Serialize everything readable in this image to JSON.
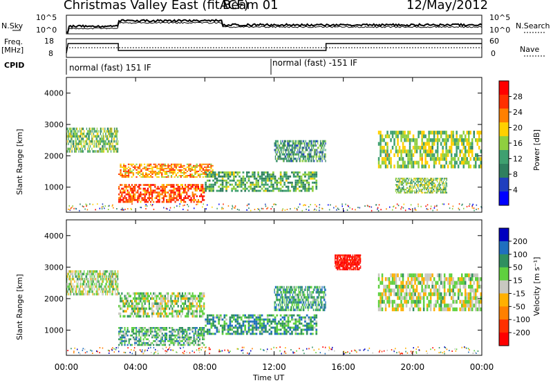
{
  "header": {
    "title": "Christmas Valley East (fitACF)",
    "beam": "Beam 01",
    "date": "12/May/2012"
  },
  "top_panels": {
    "nsky_label": "N.Sky",
    "nsky_ticks": [
      "10^5",
      "10^0"
    ],
    "nsearch_label": "N.Search",
    "nsearch_ticks": [
      "10^5",
      "10^0"
    ],
    "freq_label": "Freq.",
    "freq_unit": "[MHz]",
    "freq_ticks": [
      "18",
      "8"
    ],
    "nave_label": "Nave",
    "nave_ticks": [
      "60",
      "0"
    ],
    "cpid_label": "CPID",
    "cpid_segments": [
      "normal (fast) 151 IF",
      "normal (fast) -151 IF"
    ]
  },
  "colors": {
    "power_scale": [
      "#0000ff",
      "#1f3fbf",
      "#2f7f5f",
      "#3fa070",
      "#8fcf3f",
      "#ffd000",
      "#ff8000",
      "#ff3000",
      "#ff0000"
    ],
    "velocity_scale": [
      "#0000c0",
      "#1f6fbf",
      "#2f8f5f",
      "#5fd03f",
      "#c8c8c0",
      "#ffb000",
      "#ff8000",
      "#ff3000",
      "#ff0000"
    ]
  },
  "chart_data": [
    {
      "type": "heatmap",
      "name": "power",
      "xlabel": "Time UT",
      "ylabel": "Slant Range [km]",
      "x_ticks": [
        "00:00",
        "04:00",
        "08:00",
        "12:00",
        "16:00",
        "20:00",
        "00:00"
      ],
      "y_ticks": [
        1000,
        2000,
        3000,
        4000
      ],
      "ylim": [
        200,
        4500
      ],
      "colorbar": {
        "label": "Power [dB]",
        "ticks": [
          4,
          8,
          12,
          16,
          20,
          24,
          28
        ],
        "range": [
          0,
          32
        ]
      },
      "echo_regions": [
        {
          "t0": 0.0,
          "t1": 3.0,
          "r0": 2100,
          "r1": 2900,
          "level": 0.45
        },
        {
          "t0": 3.0,
          "t1": 8.5,
          "r0": 1300,
          "r1": 1750,
          "level": 0.7
        },
        {
          "t0": 3.0,
          "t1": 8.0,
          "r0": 500,
          "r1": 1100,
          "level": 0.8
        },
        {
          "t0": 8.0,
          "t1": 14.5,
          "r0": 850,
          "r1": 1500,
          "level": 0.4
        },
        {
          "t0": 12.0,
          "t1": 15.0,
          "r0": 1800,
          "r1": 2500,
          "level": 0.35
        },
        {
          "t0": 18.0,
          "t1": 24.0,
          "r0": 1600,
          "r1": 2800,
          "level": 0.5
        },
        {
          "t0": 19.0,
          "t1": 22.0,
          "r0": 800,
          "r1": 1300,
          "level": 0.45
        }
      ]
    },
    {
      "type": "heatmap",
      "name": "velocity",
      "xlabel": "Time UT",
      "ylabel": "Slant Range [km]",
      "x_ticks": [
        "00:00",
        "04:00",
        "08:00",
        "12:00",
        "16:00",
        "20:00",
        "00:00"
      ],
      "y_ticks": [
        1000,
        2000,
        3000,
        4000
      ],
      "ylim": [
        200,
        4500
      ],
      "colorbar": {
        "label": "Velocity [m s⁻¹]",
        "ticks": [
          200,
          100,
          50,
          15,
          -15,
          -50,
          -100,
          -200
        ],
        "range": [
          -250,
          250
        ]
      },
      "echo_regions": [
        {
          "t0": 0.0,
          "t1": 3.0,
          "r0": 2100,
          "r1": 2900,
          "level": 0.45
        },
        {
          "t0": 3.0,
          "t1": 8.0,
          "r0": 1400,
          "r1": 2200,
          "level": 0.45
        },
        {
          "t0": 3.0,
          "t1": 8.0,
          "r0": 500,
          "r1": 1100,
          "level": 0.35
        },
        {
          "t0": 8.0,
          "t1": 14.5,
          "r0": 850,
          "r1": 1500,
          "level": 0.3
        },
        {
          "t0": 12.0,
          "t1": 15.0,
          "r0": 1600,
          "r1": 2400,
          "level": 0.3
        },
        {
          "t0": 15.5,
          "t1": 17.0,
          "r0": 2900,
          "r1": 3400,
          "level": 0.95
        },
        {
          "t0": 18.0,
          "t1": 24.0,
          "r0": 1600,
          "r1": 2800,
          "level": 0.48
        }
      ]
    }
  ]
}
